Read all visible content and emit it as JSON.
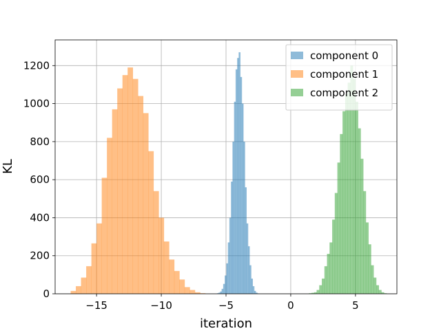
{
  "chart_data": {
    "type": "bar",
    "title": "",
    "xlabel": "iteration",
    "ylabel": "KL",
    "xlim": [
      -18.2,
      8.2
    ],
    "ylim": [
      0,
      1335
    ],
    "xticks": [
      -15,
      -10,
      -5,
      0,
      5
    ],
    "xtick_labels": [
      "−15",
      "−10",
      "−5",
      "0",
      "5"
    ],
    "yticks": [
      0,
      200,
      400,
      600,
      800,
      1000,
      1200
    ],
    "ytick_labels": [
      "0",
      "200",
      "400",
      "600",
      "800",
      "1000",
      "1200"
    ],
    "grid": true,
    "legend_position": "top-right",
    "series": [
      {
        "name": "component 0",
        "color": "#1f77b4",
        "alpha": 0.5,
        "bin_start": -5.7,
        "bin_width": 0.12,
        "counts": [
          3,
          6,
          12,
          26,
          52,
          96,
          160,
          270,
          400,
          590,
          800,
          1010,
          1180,
          1240,
          1270,
          1140,
          1000,
          800,
          560,
          370,
          250,
          150,
          80,
          40,
          15,
          6,
          2
        ]
      },
      {
        "name": "component 1",
        "color": "#ff7f0e",
        "alpha": 0.5,
        "bin_start": -17.0,
        "bin_width": 0.4,
        "counts": [
          15,
          40,
          85,
          145,
          265,
          370,
          610,
          820,
          970,
          1080,
          1150,
          1190,
          1130,
          1040,
          950,
          750,
          540,
          400,
          275,
          180,
          120,
          75,
          35,
          20,
          8,
          3
        ]
      },
      {
        "name": "component 2",
        "color": "#2ca02c",
        "alpha": 0.5,
        "bin_start": 1.4,
        "bin_width": 0.2,
        "counts": [
          3,
          5,
          8,
          20,
          45,
          80,
          145,
          210,
          270,
          390,
          530,
          690,
          840,
          960,
          1050,
          1110,
          1200,
          1130,
          1010,
          870,
          710,
          540,
          375,
          260,
          150,
          85,
          45,
          20,
          8,
          3
        ]
      }
    ]
  }
}
